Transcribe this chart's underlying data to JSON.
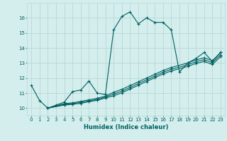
{
  "xlabel": "Humidex (Indice chaleur)",
  "bg_color": "#d4eeed",
  "grid_color": "#b8d8d4",
  "line_color": "#006060",
  "xlim": [
    -0.5,
    23.5
  ],
  "ylim": [
    9.5,
    17.0
  ],
  "yticks": [
    10,
    11,
    12,
    13,
    14,
    15,
    16
  ],
  "xticks": [
    0,
    1,
    2,
    3,
    4,
    5,
    6,
    7,
    8,
    9,
    10,
    11,
    12,
    13,
    14,
    15,
    16,
    17,
    18,
    19,
    20,
    21,
    22,
    23
  ],
  "curve1_x": [
    0,
    1,
    2,
    3,
    4,
    5,
    6,
    7,
    8,
    9,
    10,
    11,
    12,
    13,
    14,
    15,
    16,
    17,
    18,
    19,
    20,
    21,
    22,
    23
  ],
  "curve1_y": [
    11.5,
    10.5,
    10.0,
    10.2,
    10.4,
    11.1,
    11.2,
    11.8,
    11.0,
    10.9,
    15.2,
    16.1,
    16.4,
    15.6,
    16.0,
    15.7,
    15.7,
    15.2,
    12.4,
    13.0,
    13.3,
    13.7,
    13.1,
    13.7
  ],
  "curve2_x": [
    2,
    4,
    5,
    6,
    7,
    8,
    9,
    10,
    11,
    12,
    13,
    14,
    15,
    16,
    17,
    19,
    20,
    21,
    22,
    23
  ],
  "curve2_y": [
    10.0,
    10.3,
    10.35,
    10.45,
    10.55,
    10.65,
    10.8,
    11.05,
    11.25,
    11.5,
    11.75,
    12.0,
    12.25,
    12.5,
    12.7,
    13.0,
    13.2,
    13.35,
    13.15,
    13.7
  ],
  "curve3_x": [
    2,
    4,
    5,
    6,
    7,
    8,
    9,
    10,
    11,
    12,
    13,
    14,
    15,
    16,
    17,
    19,
    20,
    21,
    22,
    23
  ],
  "curve3_y": [
    10.0,
    10.25,
    10.3,
    10.38,
    10.48,
    10.58,
    10.73,
    10.93,
    11.13,
    11.38,
    11.63,
    11.88,
    12.13,
    12.38,
    12.58,
    12.88,
    13.08,
    13.22,
    13.02,
    13.55
  ],
  "curve4_x": [
    2,
    4,
    5,
    6,
    7,
    8,
    9,
    10,
    11,
    12,
    13,
    14,
    15,
    16,
    17,
    19,
    20,
    21,
    22,
    23
  ],
  "curve4_y": [
    10.0,
    10.2,
    10.25,
    10.32,
    10.42,
    10.52,
    10.67,
    10.82,
    11.02,
    11.27,
    11.52,
    11.77,
    12.02,
    12.27,
    12.47,
    12.77,
    12.97,
    13.1,
    12.9,
    13.42
  ],
  "marker_size": 2.5
}
